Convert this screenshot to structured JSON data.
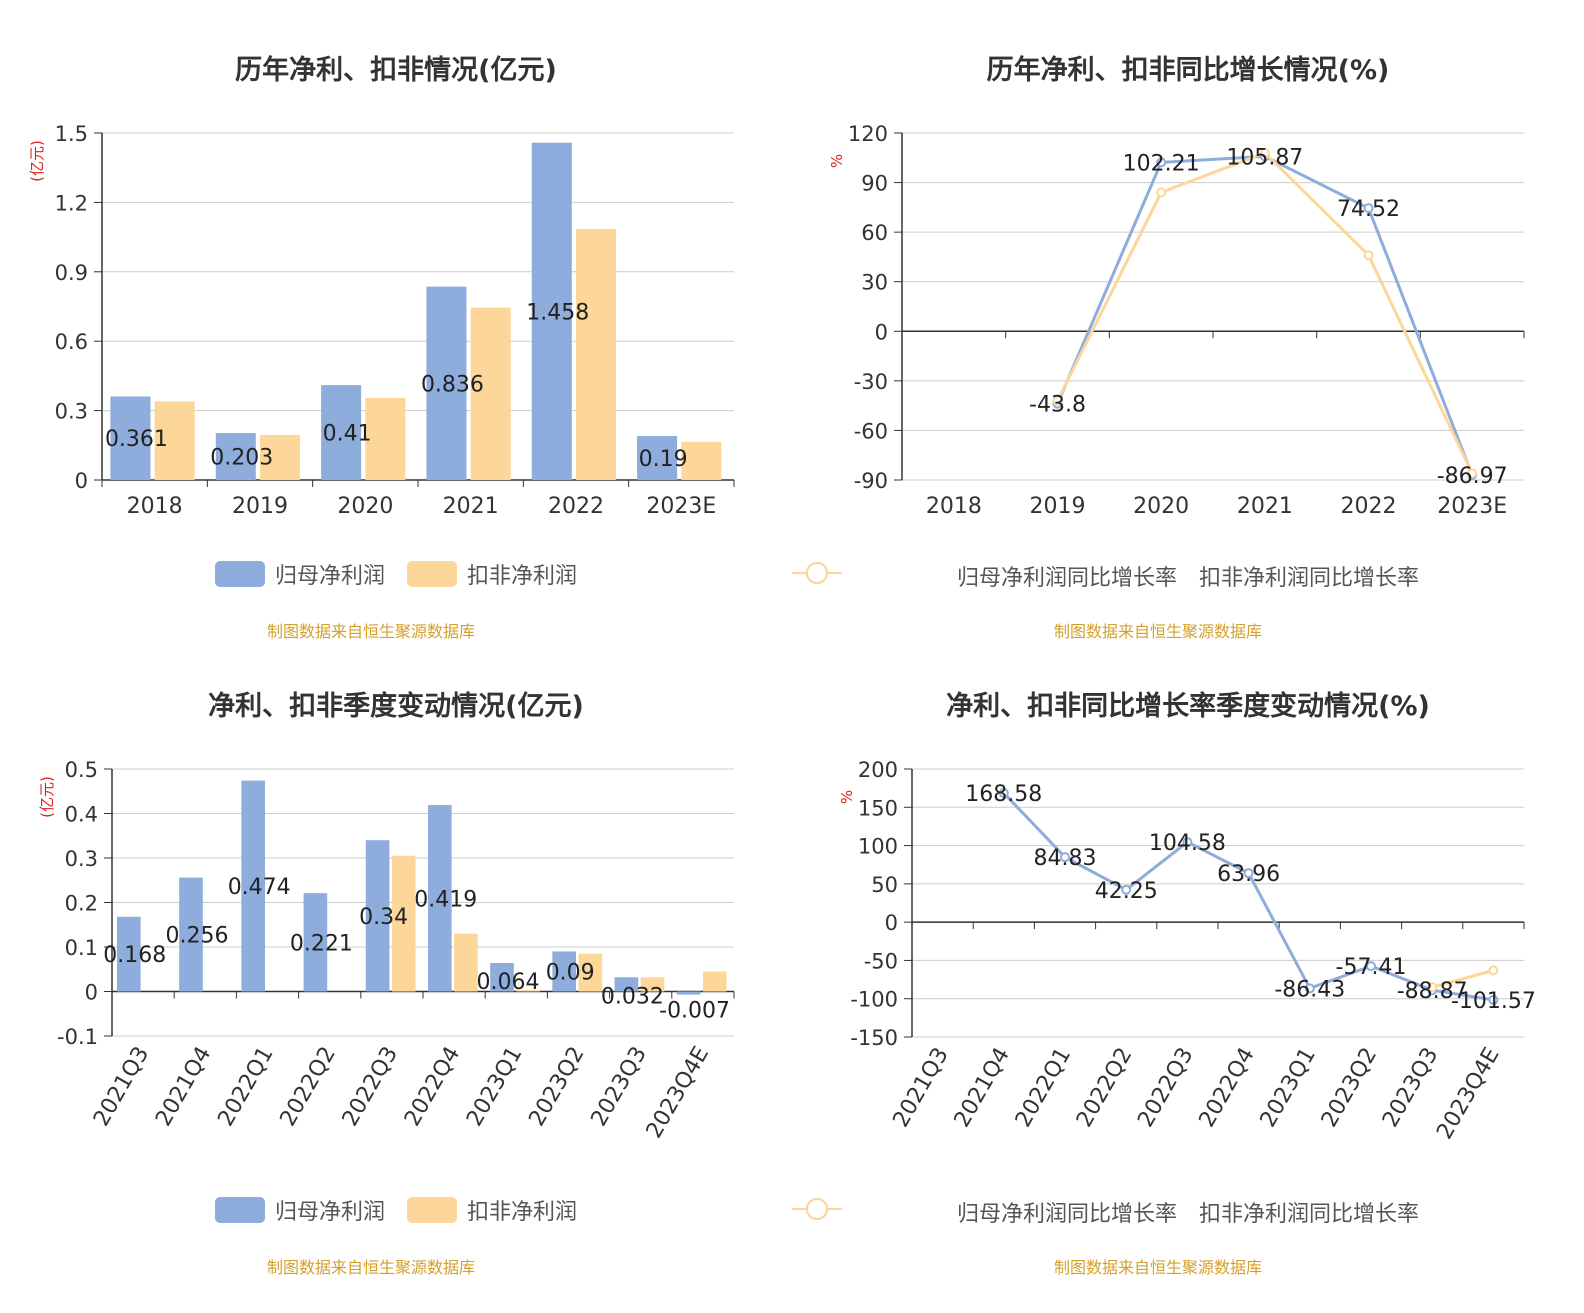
{
  "colors": {
    "series1": "#8eacdc",
    "series2": "#fdd699",
    "axis": "#333333",
    "grid": "#cccccc",
    "unit": "#e02020",
    "source": "#d4a02a"
  },
  "legend": {
    "bar1": "归母净利润",
    "bar2": "扣非净利润",
    "line1": "归母净利润同比增长率",
    "line2": "扣非净利润同比增长率"
  },
  "source_text": "制图数据来自恒生聚源数据库",
  "chart_data": [
    {
      "type": "bar",
      "title": "历年净利、扣非情况(亿元)",
      "unit": "(亿元)",
      "categories": [
        "2018",
        "2019",
        "2020",
        "2021",
        "2022",
        "2023E"
      ],
      "ylim": [
        0,
        1.5
      ],
      "yticks": [
        "0",
        "0.3",
        "0.6",
        "0.9",
        "1.2",
        "1.5"
      ],
      "series": [
        {
          "name": "归母净利润",
          "values": [
            0.361,
            0.203,
            0.41,
            0.836,
            1.458,
            0.19
          ],
          "labels": [
            "0.361",
            "0.203",
            "0.41",
            "0.836",
            "1.458",
            "0.19"
          ]
        },
        {
          "name": "扣非净利润",
          "values": [
            0.34,
            0.195,
            0.355,
            0.745,
            1.085,
            0.165
          ]
        }
      ]
    },
    {
      "type": "line",
      "title": "历年净利、扣非同比增长情况(%)",
      "unit": "%",
      "categories": [
        "2018",
        "2019",
        "2020",
        "2021",
        "2022",
        "2023E"
      ],
      "ylim": [
        -90,
        120
      ],
      "yticks": [
        "-90",
        "-60",
        "-30",
        "0",
        "30",
        "60",
        "90",
        "120"
      ],
      "series": [
        {
          "name": "归母净利润同比增长率",
          "values": [
            null,
            -43.8,
            102.21,
            105.87,
            74.52,
            -86.97
          ],
          "labels": [
            null,
            "-43.8",
            "102.21",
            "105.87",
            "74.52",
            "-86.97"
          ]
        },
        {
          "name": "扣非净利润同比增长率",
          "values": [
            null,
            -42,
            84,
            108,
            46,
            -86
          ]
        }
      ]
    },
    {
      "type": "bar",
      "title": "净利、扣非季度变动情况(亿元)",
      "unit": "(亿元)",
      "categories": [
        "2021Q3",
        "2021Q4",
        "2022Q1",
        "2022Q2",
        "2022Q3",
        "2022Q4",
        "2023Q1",
        "2023Q2",
        "2023Q3",
        "2023Q4E"
      ],
      "ylim": [
        -0.1,
        0.5
      ],
      "yticks": [
        "-0.1",
        "0",
        "0.1",
        "0.2",
        "0.3",
        "0.4",
        "0.5"
      ],
      "series": [
        {
          "name": "归母净利润",
          "values": [
            0.168,
            0.256,
            0.474,
            0.221,
            0.34,
            0.419,
            0.064,
            0.09,
            0.032,
            -0.007
          ],
          "labels": [
            "0.168",
            "0.256",
            "0.474",
            "0.221",
            "0.34",
            "0.419",
            "0.064",
            "0.09",
            "0.032",
            "-0.007"
          ]
        },
        {
          "name": "扣非净利润",
          "values": [
            null,
            null,
            null,
            null,
            0.305,
            0.13,
            0.003,
            0.085,
            0.032,
            0.045
          ]
        }
      ]
    },
    {
      "type": "line",
      "title": "净利、扣非同比增长率季度变动情况(%)",
      "unit": "%",
      "categories": [
        "2021Q3",
        "2021Q4",
        "2022Q1",
        "2022Q2",
        "2022Q3",
        "2022Q4",
        "2023Q1",
        "2023Q2",
        "2023Q3",
        "2023Q4E"
      ],
      "ylim": [
        -150,
        200
      ],
      "yticks": [
        "-150",
        "-100",
        "-50",
        "0",
        "50",
        "100",
        "150",
        "200"
      ],
      "series": [
        {
          "name": "归母净利润同比增长率",
          "values": [
            null,
            168.58,
            84.83,
            42.25,
            104.58,
            63.96,
            -86.43,
            -57.41,
            -88.87,
            -101.57
          ],
          "labels": [
            null,
            "168.58",
            "84.83",
            "42.25",
            "104.58",
            "63.96",
            "-86.43",
            "-57.41",
            "-88.87",
            "-101.57"
          ]
        },
        {
          "name": "扣非净利润同比增长率",
          "values": [
            null,
            null,
            null,
            null,
            null,
            null,
            null,
            null,
            -85,
            -63
          ]
        }
      ]
    }
  ]
}
